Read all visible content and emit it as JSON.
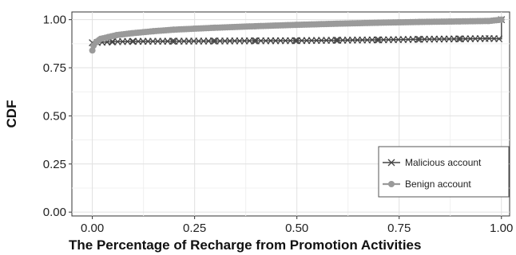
{
  "chart_data": {
    "type": "line",
    "title": "",
    "xlabel": "The Percentage of Recharge from Promotion Activities",
    "ylabel": "CDF",
    "xlim": [
      -0.05,
      1.02
    ],
    "ylim": [
      -0.02,
      1.04
    ],
    "x_ticks": [
      0.0,
      0.25,
      0.5,
      0.75,
      1.0
    ],
    "x_tick_labels": [
      "0.00",
      "0.25",
      "0.50",
      "0.75",
      "1.00"
    ],
    "y_ticks": [
      0.0,
      0.25,
      0.5,
      0.75,
      1.0
    ],
    "y_tick_labels": [
      "0.00",
      "0.25",
      "0.50",
      "0.75",
      "1.00"
    ],
    "grid": true,
    "legend_position": "bottom-right",
    "series": [
      {
        "name": "Malicious account",
        "marker": "x",
        "color": "#444444",
        "points": [
          [
            0.0,
            0.855
          ],
          [
            0.0,
            0.88
          ],
          [
            0.05,
            0.885
          ],
          [
            0.1,
            0.887
          ],
          [
            0.2,
            0.888
          ],
          [
            0.3,
            0.889
          ],
          [
            0.4,
            0.89
          ],
          [
            0.5,
            0.891
          ],
          [
            0.6,
            0.893
          ],
          [
            0.7,
            0.895
          ],
          [
            0.8,
            0.898
          ],
          [
            0.9,
            0.9
          ],
          [
            0.97,
            0.902
          ],
          [
            1.0,
            0.9
          ],
          [
            1.0,
            1.0
          ]
        ]
      },
      {
        "name": "Benign account",
        "marker": "circle",
        "color": "#9a9a9a",
        "points": [
          [
            0.0,
            0.84
          ],
          [
            0.003,
            0.865
          ],
          [
            0.01,
            0.885
          ],
          [
            0.02,
            0.9
          ],
          [
            0.04,
            0.91
          ],
          [
            0.06,
            0.92
          ],
          [
            0.1,
            0.93
          ],
          [
            0.15,
            0.94
          ],
          [
            0.2,
            0.948
          ],
          [
            0.3,
            0.958
          ],
          [
            0.4,
            0.966
          ],
          [
            0.5,
            0.973
          ],
          [
            0.6,
            0.979
          ],
          [
            0.7,
            0.984
          ],
          [
            0.8,
            0.988
          ],
          [
            0.9,
            0.991
          ],
          [
            0.97,
            0.993
          ],
          [
            1.0,
            1.0
          ]
        ]
      }
    ]
  }
}
